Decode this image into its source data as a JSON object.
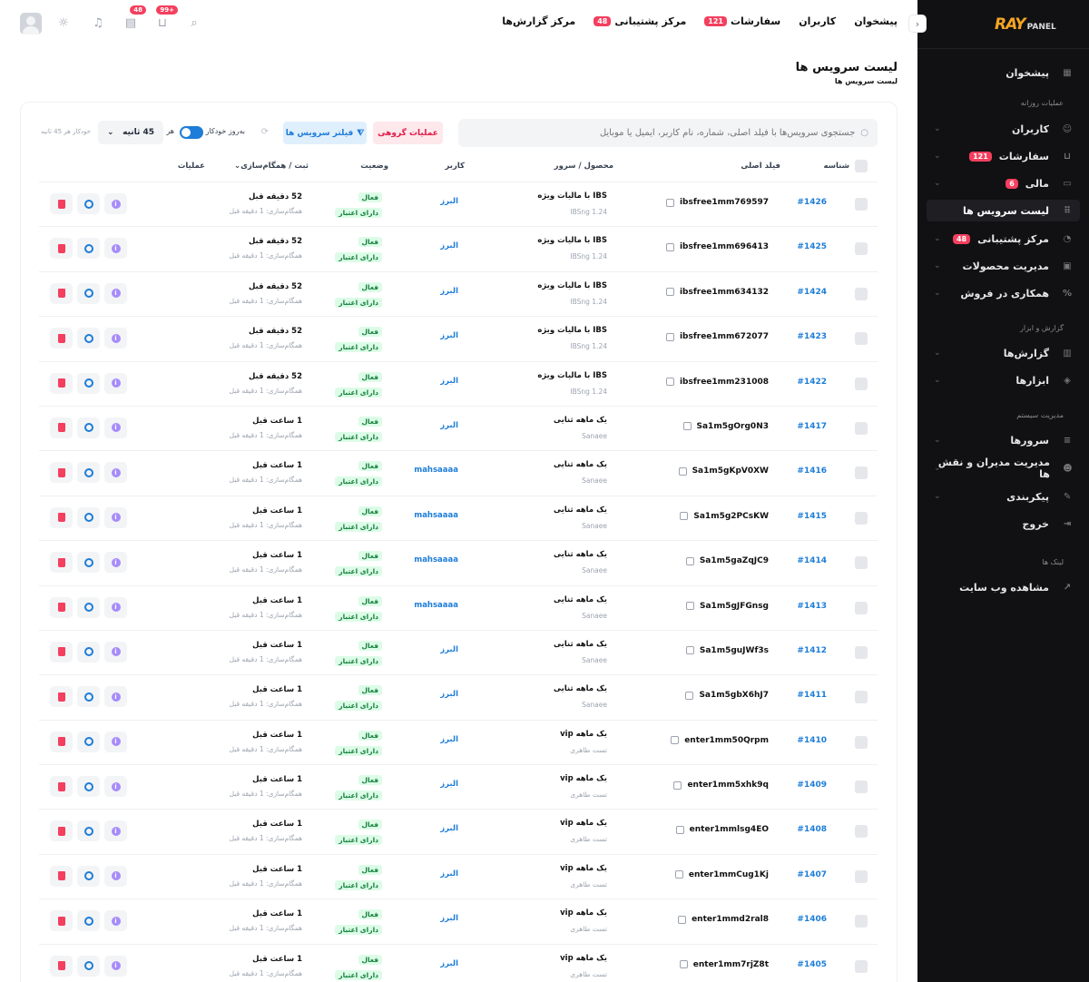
{
  "sidebar": {
    "logo_ray": "RAY",
    "logo_panel": "PANEL",
    "items": [
      {
        "label": "پیشخوان"
      },
      {
        "label": "کاربران"
      },
      {
        "label": "سفارشات",
        "badge": "121"
      },
      {
        "label": "مالی",
        "badge": "6"
      },
      {
        "label": "لیست سرویس ها"
      },
      {
        "label": "مرکز پشتیبانی",
        "badge": "48"
      },
      {
        "label": "مدیریت محصولات"
      },
      {
        "label": "همکاری در فروش"
      },
      {
        "label": "گزارش‌ها"
      },
      {
        "label": "ابزارها"
      },
      {
        "label": "سرورها"
      },
      {
        "label": "مدیریت مدیران و نقش ها"
      },
      {
        "label": "پیکربندی"
      },
      {
        "label": "خروج"
      },
      {
        "label": "مشاهده وب سایت"
      }
    ],
    "sections": [
      "عملیات روزانه",
      "گزارش و ابزار",
      "مدیریت سیستم",
      "لینک ها"
    ]
  },
  "topbar": {
    "nav": [
      {
        "label": "پیشخوان"
      },
      {
        "label": "کاربران"
      },
      {
        "label": "سفارشات",
        "badge": "121"
      },
      {
        "label": "مرکز پشتیبانی",
        "badge": "48"
      },
      {
        "label": "مرکز گزارش‌ها"
      }
    ],
    "badges": {
      "messages": "48",
      "cart": "+99"
    }
  },
  "page": {
    "title": "لیست سرویس ها",
    "breadcrumb": "لیست سرویس ها"
  },
  "toolbar": {
    "search_placeholder": "جستجوی سرویس‌ها با فیلد اصلی، شماره، نام کاربر، ایمیل یا موبایل",
    "bulk_label": "عملیات گروهی",
    "filter_label": "فیلتر سرویس ها",
    "auto_refresh_label": "بەروز خودکار",
    "every_label": "هر",
    "interval_value": "45 ثانیه",
    "auto_status": "خودکار هر 45 ثانیه"
  },
  "table": {
    "headers": [
      "شناسه",
      "فیلد اصلی",
      "محصول / سرور",
      "کاربر",
      "وضعیت",
      "ثبت / همگام‌سازی",
      "عملیات"
    ],
    "status_active": "فعال",
    "status_credit": "دارای اعتبار",
    "sync_text": "همگام‌سازی: 1 دقیقه قبل",
    "rows": [
      {
        "id": "#1426",
        "main": "ibsfree1mm769597",
        "product": "IBS با مالیات ویژه",
        "server": "IBSng 1.24",
        "user": "البرز",
        "time": "52 دقیقه قبل"
      },
      {
        "id": "#1425",
        "main": "ibsfree1mm696413",
        "product": "IBS با مالیات ویژه",
        "server": "IBSng 1.24",
        "user": "البرز",
        "time": "52 دقیقه قبل"
      },
      {
        "id": "#1424",
        "main": "ibsfree1mm634132",
        "product": "IBS با مالیات ویژه",
        "server": "IBSng 1.24",
        "user": "البرز",
        "time": "52 دقیقه قبل"
      },
      {
        "id": "#1423",
        "main": "ibsfree1mm672077",
        "product": "IBS با مالیات ویژه",
        "server": "IBSng 1.24",
        "user": "البرز",
        "time": "52 دقیقه قبل"
      },
      {
        "id": "#1422",
        "main": "ibsfree1mm231008",
        "product": "IBS با مالیات ویژه",
        "server": "IBSng 1.24",
        "user": "البرز",
        "time": "52 دقیقه قبل"
      },
      {
        "id": "#1417",
        "main": "Sa1m5gOrg0N3",
        "product": "یک ماهه ثنایی",
        "server": "Sanaee",
        "user": "البرز",
        "time": "1 ساعت قبل"
      },
      {
        "id": "#1416",
        "main": "Sa1m5gKpV0XW",
        "product": "یک ماهه ثنایی",
        "server": "Sanaee",
        "user": "mahsaaaa",
        "time": "1 ساعت قبل"
      },
      {
        "id": "#1415",
        "main": "Sa1m5g2PCsKW",
        "product": "یک ماهه ثنایی",
        "server": "Sanaee",
        "user": "mahsaaaa",
        "time": "1 ساعت قبل"
      },
      {
        "id": "#1414",
        "main": "Sa1m5gaZqJC9",
        "product": "یک ماهه ثنایی",
        "server": "Sanaee",
        "user": "mahsaaaa",
        "time": "1 ساعت قبل"
      },
      {
        "id": "#1413",
        "main": "Sa1m5gJFGnsg",
        "product": "یک ماهه ثنایی",
        "server": "Sanaee",
        "user": "mahsaaaa",
        "time": "1 ساعت قبل"
      },
      {
        "id": "#1412",
        "main": "Sa1m5guJWf3s",
        "product": "یک ماهه ثنایی",
        "server": "Sanaee",
        "user": "البرز",
        "time": "1 ساعت قبل"
      },
      {
        "id": "#1411",
        "main": "Sa1m5gbX6hJ7",
        "product": "یک ماهه ثنایی",
        "server": "Sanaee",
        "user": "البرز",
        "time": "1 ساعت قبل"
      },
      {
        "id": "#1410",
        "main": "enter1mm50Qrpm",
        "product": "یک ماهه vip",
        "server": "تست طاهری",
        "user": "البرز",
        "time": "1 ساعت قبل"
      },
      {
        "id": "#1409",
        "main": "enter1mm5xhk9q",
        "product": "یک ماهه vip",
        "server": "تست طاهری",
        "user": "البرز",
        "time": "1 ساعت قبل"
      },
      {
        "id": "#1408",
        "main": "enter1mmlsg4EO",
        "product": "یک ماهه vip",
        "server": "تست طاهری",
        "user": "البرز",
        "time": "1 ساعت قبل"
      },
      {
        "id": "#1407",
        "main": "enter1mmCug1Kj",
        "product": "یک ماهه vip",
        "server": "تست طاهری",
        "user": "البرز",
        "time": "1 ساعت قبل"
      },
      {
        "id": "#1406",
        "main": "enter1mmd2ral8",
        "product": "یک ماهه vip",
        "server": "تست طاهری",
        "user": "البرز",
        "time": "1 ساعت قبل"
      },
      {
        "id": "#1405",
        "main": "enter1mm7rjZ8t",
        "product": "یک ماهه vip",
        "server": "تست طاهری",
        "user": "البرز",
        "time": "1 ساعت قبل"
      }
    ]
  }
}
